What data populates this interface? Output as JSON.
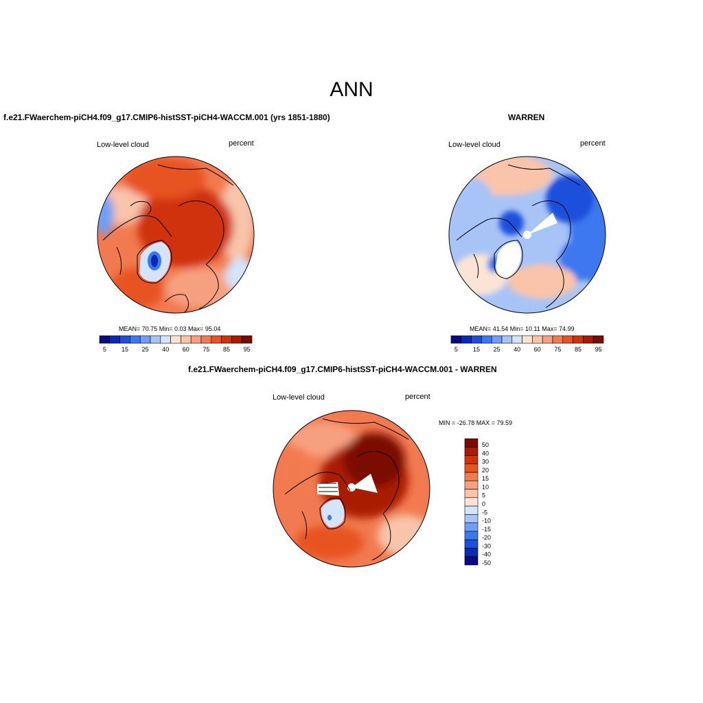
{
  "main_title": "ANN",
  "panels": [
    {
      "title": "f.e21.FWaerchem-piCH4.f09_g17.CMIP6-histSST-piCH4-WACCM.001 (yrs 1851-1880)",
      "left_label": "Low-level cloud",
      "right_label": "percent",
      "stats": "MEAN=  70.75  Min=   0.03  Max=  95.04",
      "colorbar": {
        "colors": [
          "#0a0a82",
          "#0a2ab4",
          "#1e4fdc",
          "#3c78f0",
          "#6e9ef5",
          "#a8c4f7",
          "#d4e4fa",
          "#fbe4d6",
          "#f9c4aa",
          "#f7a080",
          "#f27a50",
          "#e85322",
          "#cf3309",
          "#aa1b03",
          "#7a0a02"
        ],
        "tick_labels": [
          "5",
          "15",
          "25",
          "40",
          "60",
          "75",
          "85",
          "95"
        ]
      }
    },
    {
      "title": "WARREN",
      "left_label": "Low-level cloud",
      "right_label": "percent",
      "stats": "MEAN=  41.54  Min=  10.11  Max=  74.99",
      "colorbar": {
        "colors": [
          "#0a0a82",
          "#0a2ab4",
          "#1e4fdc",
          "#3c78f0",
          "#6e9ef5",
          "#a8c4f7",
          "#d4e4fa",
          "#fbe4d6",
          "#f9c4aa",
          "#f7a080",
          "#f27a50",
          "#e85322",
          "#cf3309",
          "#aa1b03",
          "#7a0a02"
        ],
        "tick_labels": [
          "5",
          "15",
          "25",
          "40",
          "60",
          "75",
          "85",
          "95"
        ]
      }
    },
    {
      "title": "f.e21.FWaerchem-piCH4.f09_g17.CMIP6-histSST-piCH4-WACCM.001 - WARREN",
      "left_label": "Low-level cloud",
      "right_label": "percent",
      "stats": "MIN = -26.78 MAX =  79.59",
      "colorbar": {
        "colors": [
          "#7a0a02",
          "#aa1b03",
          "#cf3309",
          "#e85322",
          "#f27a50",
          "#f7a080",
          "#f9c4aa",
          "#fbe4d6",
          "#d4e4fa",
          "#a8c4f7",
          "#6e9ef5",
          "#3c78f0",
          "#1e4fdc",
          "#0a2ab4",
          "#0a0a82"
        ],
        "tick_labels": [
          "50",
          "40",
          "30",
          "20",
          "15",
          "10",
          "5",
          "0",
          "-5",
          "-10",
          "-15",
          "-20",
          "-30",
          "-40",
          "-50"
        ]
      }
    }
  ]
}
